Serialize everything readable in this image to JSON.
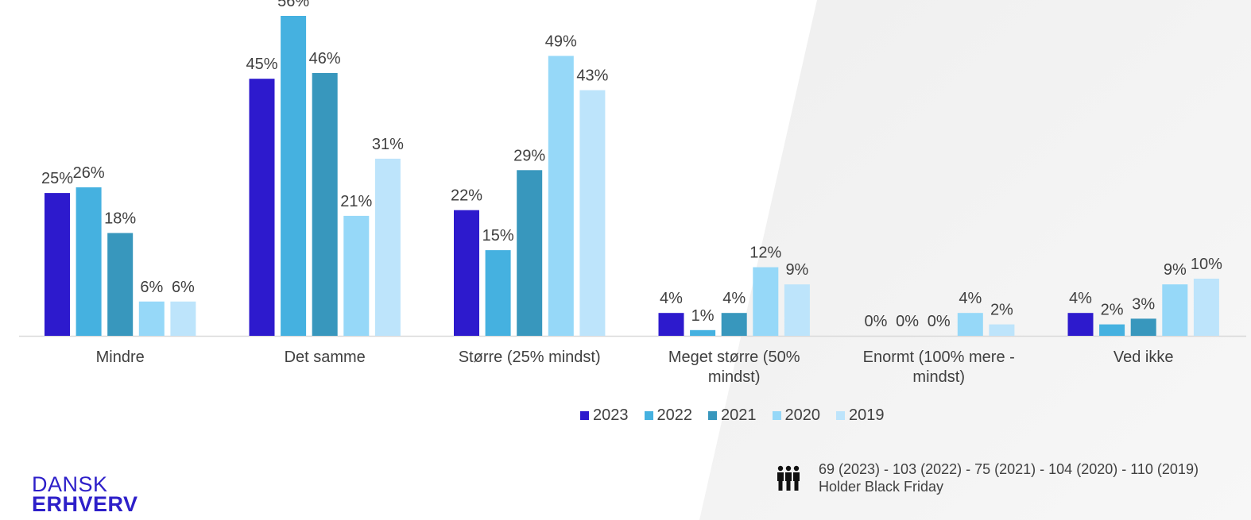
{
  "chart_data": {
    "type": "bar",
    "categories": [
      [
        "Mindre"
      ],
      [
        "Det samme"
      ],
      [
        "Større (25% mindst)"
      ],
      [
        "Meget større (50%",
        "mindst)"
      ],
      [
        "Enormt (100% mere -",
        "mindst)"
      ],
      [
        "Ved ikke"
      ]
    ],
    "series": [
      {
        "name": "2023",
        "color": "#2d1acd",
        "values": [
          25,
          45,
          22,
          4,
          0,
          4
        ]
      },
      {
        "name": "2022",
        "color": "#45b1e0",
        "values": [
          26,
          56,
          15,
          1,
          0,
          2
        ]
      },
      {
        "name": "2021",
        "color": "#3897bd",
        "values": [
          18,
          46,
          29,
          4,
          0,
          3
        ]
      },
      {
        "name": "2020",
        "color": "#96d8f8",
        "values": [
          6,
          21,
          49,
          12,
          4,
          9
        ]
      },
      {
        "name": "2019",
        "color": "#bde4fb",
        "values": [
          6,
          31,
          43,
          9,
          2,
          10
        ]
      }
    ],
    "value_suffix": "%",
    "ylim": [
      0,
      56
    ],
    "legend_position": "bottom",
    "grid": false
  },
  "footer": {
    "icon": "people-icon",
    "line1": "69 (2023) - 103 (2022) - 75 (2021) - 104 (2020) - 110 (2019)",
    "line2": "Holder Black Friday"
  },
  "logo": {
    "line1": "DANSK",
    "line2": "ERHVERV"
  }
}
